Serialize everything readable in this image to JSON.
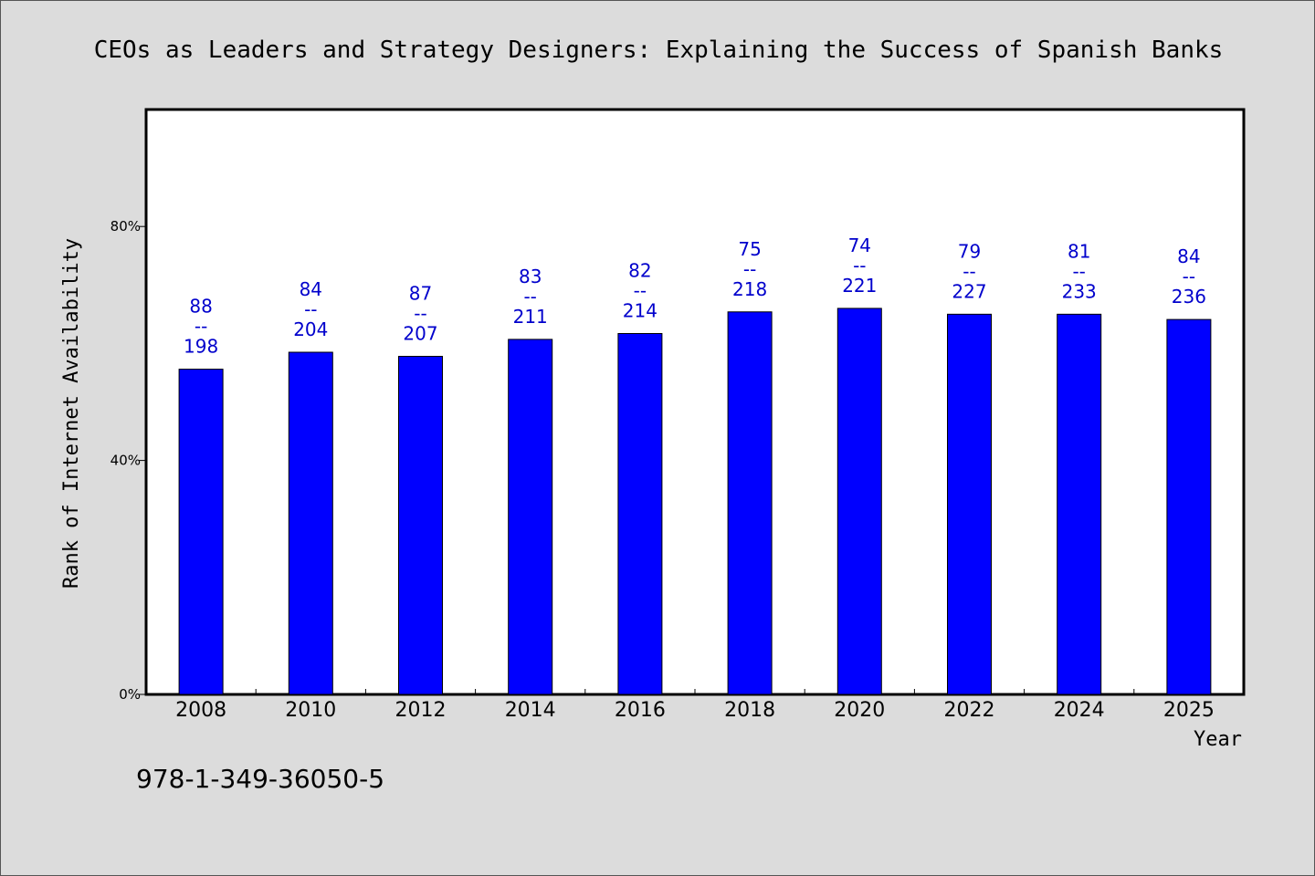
{
  "chart_data": {
    "type": "bar",
    "title": "CEOs as Leaders and Strategy Designers: Explaining the Success of Spanish Banks",
    "xlabel": "Year",
    "ylabel": "Rank of Internet Availability",
    "categories": [
      "2008",
      "2010",
      "2012",
      "2014",
      "2016",
      "2018",
      "2020",
      "2022",
      "2024",
      "2025"
    ],
    "values": [
      55.6,
      58.5,
      57.8,
      60.7,
      61.7,
      65.4,
      66.0,
      65.0,
      65.0,
      64.1
    ],
    "value_unit": "%",
    "ylim": [
      0,
      100
    ],
    "yticks": [
      0,
      40,
      80
    ],
    "ytick_labels": [
      "0%",
      "40%",
      "80%"
    ],
    "bar_labels": [
      {
        "top": "88",
        "sep": "--",
        "bottom": "198"
      },
      {
        "top": "84",
        "sep": "--",
        "bottom": "204"
      },
      {
        "top": "87",
        "sep": "--",
        "bottom": "207"
      },
      {
        "top": "83",
        "sep": "--",
        "bottom": "211"
      },
      {
        "top": "82",
        "sep": "--",
        "bottom": "214"
      },
      {
        "top": "75",
        "sep": "--",
        "bottom": "218"
      },
      {
        "top": "74",
        "sep": "--",
        "bottom": "221"
      },
      {
        "top": "79",
        "sep": "--",
        "bottom": "227"
      },
      {
        "top": "81",
        "sep": "--",
        "bottom": "233"
      },
      {
        "top": "84",
        "sep": "--",
        "bottom": "236"
      }
    ],
    "grid": false,
    "legend": "none",
    "colors": {
      "bar": "#0000ff",
      "bar_edge": "#000000",
      "label": "#0000cc",
      "background": "#dcdcdc",
      "plot_background": "#ffffff"
    }
  },
  "footnote": "978-1-349-36050-5"
}
